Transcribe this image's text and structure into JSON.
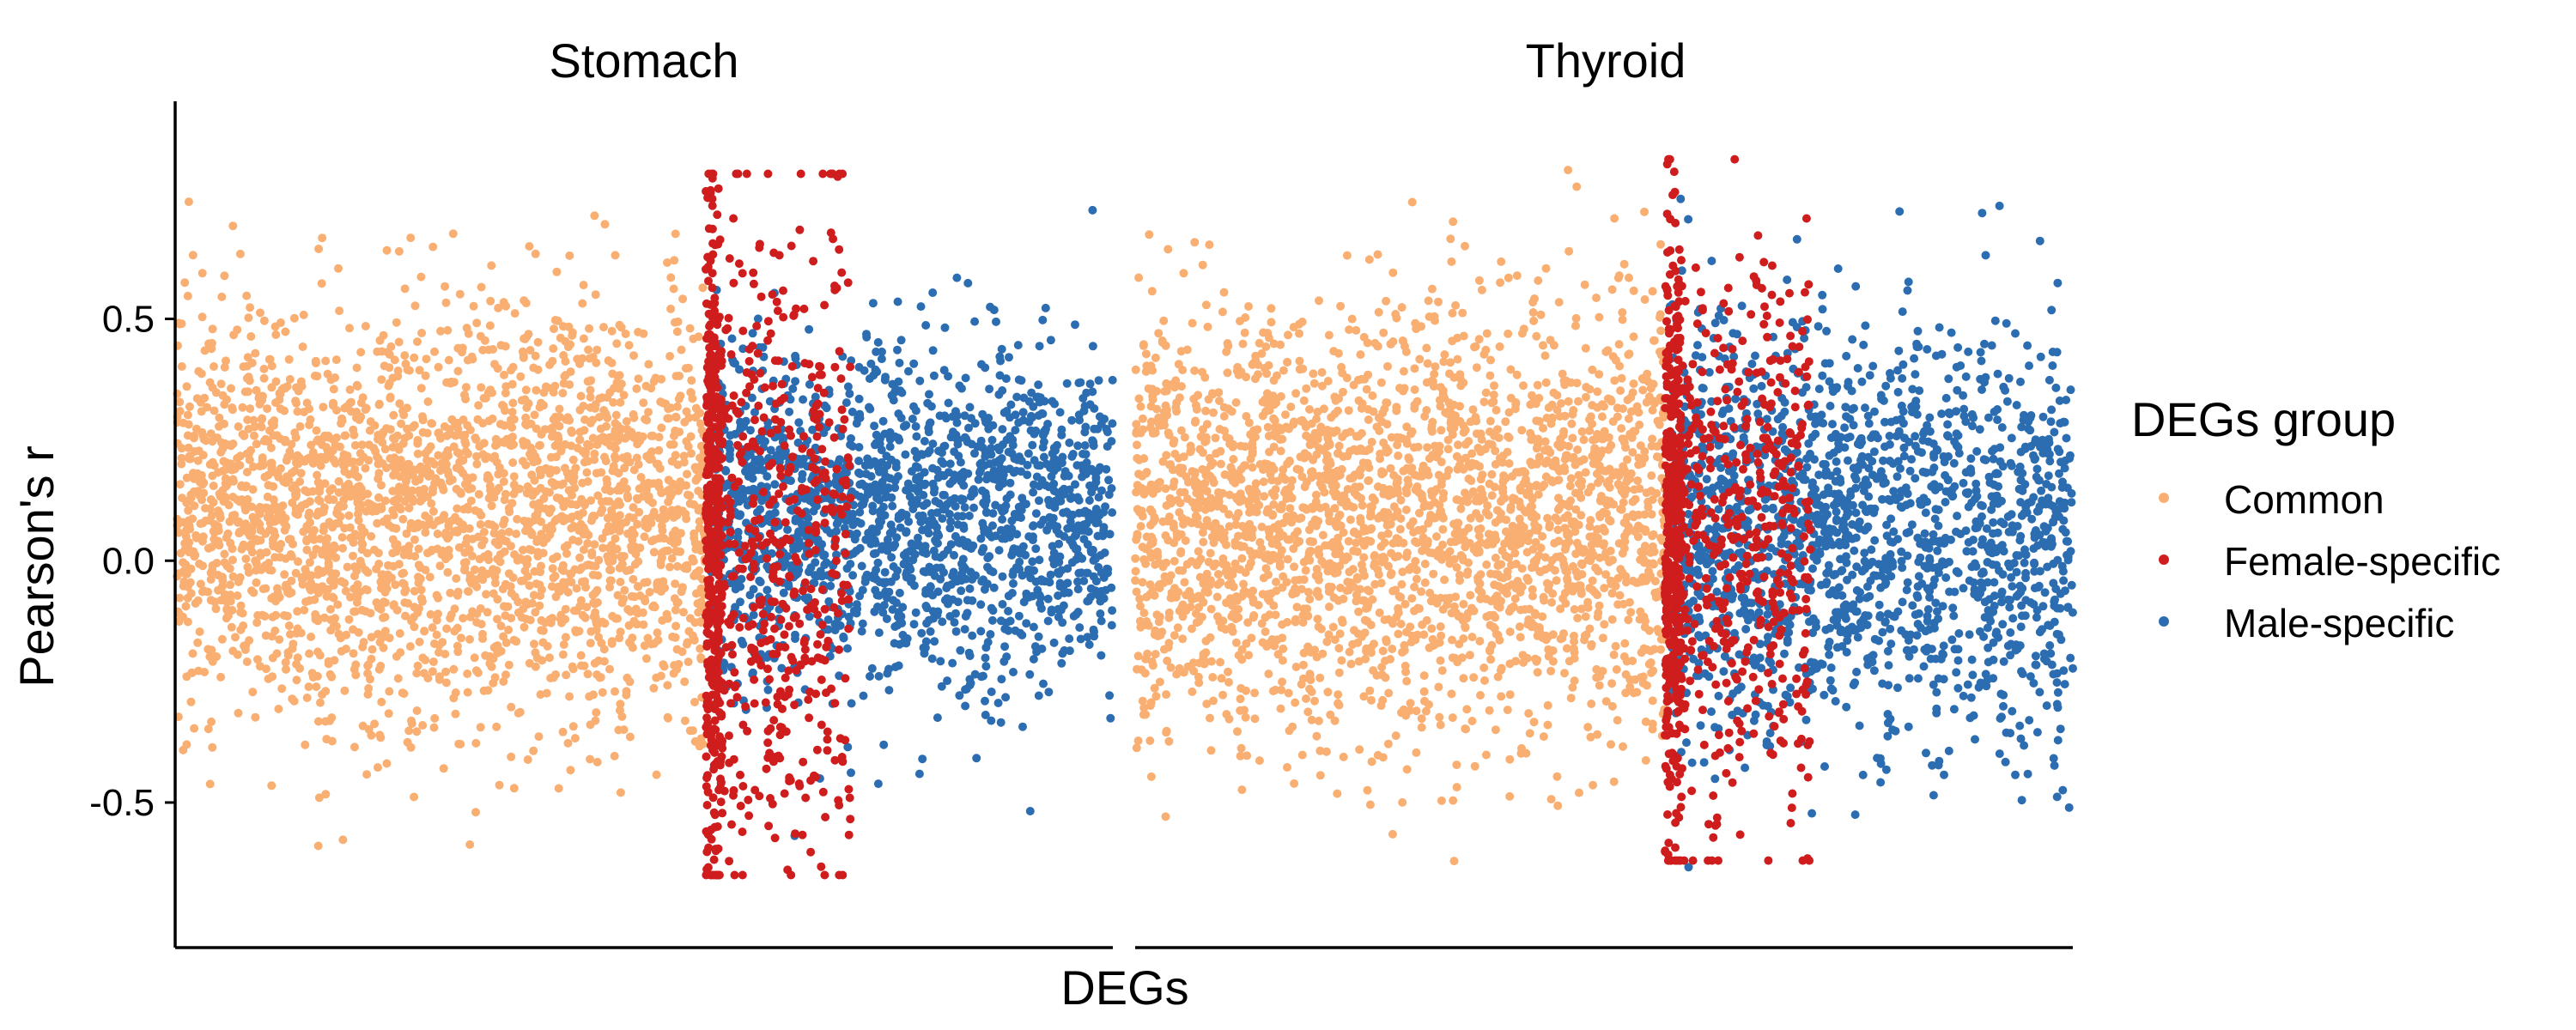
{
  "chart_data": {
    "type": "scatter",
    "title": "",
    "xlabel": "DEGs",
    "ylabel": "Pearson's r",
    "ylim": [
      -0.8,
      0.95
    ],
    "yticks": [
      {
        "value": 0.5,
        "label": "0.5"
      },
      {
        "value": 0.0,
        "label": "0.0"
      },
      {
        "value": -0.5,
        "label": "-0.5"
      }
    ],
    "grid": false,
    "legend": {
      "title": "DEGs group",
      "placement": "right",
      "entries": [
        {
          "name": "Common",
          "color": "#f9ae72"
        },
        {
          "name": "Female-specific",
          "color": "#cf1d1d"
        },
        {
          "name": "Male-specific",
          "color": "#2b6db0"
        }
      ]
    },
    "facets": [
      {
        "name": "Stomach",
        "groups": [
          {
            "group": "Common",
            "x_range": [
              0,
              0.565
            ],
            "y_center": 0.1,
            "y_sd": 0.21,
            "y_min": -0.66,
            "y_max": 0.88
          },
          {
            "group": "Female-specific",
            "x_range": [
              0.565,
              0.72
            ],
            "y_center": 0.05,
            "y_sd": 0.33,
            "y_min": -0.65,
            "y_max": 0.8
          },
          {
            "group": "Male-specific",
            "x_range": [
              0.57,
              1.0
            ],
            "y_center": 0.09,
            "y_sd": 0.17,
            "y_min": -0.57,
            "y_max": 0.76
          }
        ]
      },
      {
        "name": "Thyroid",
        "groups": [
          {
            "group": "Common",
            "x_range": [
              0,
              0.565
            ],
            "y_center": 0.08,
            "y_sd": 0.22,
            "y_min": -0.72,
            "y_max": 0.88
          },
          {
            "group": "Female-specific",
            "x_range": [
              0.565,
              0.72
            ],
            "y_center": 0.05,
            "y_sd": 0.3,
            "y_min": -0.62,
            "y_max": 0.83
          },
          {
            "group": "Male-specific",
            "x_range": [
              0.57,
              1.0
            ],
            "y_center": 0.05,
            "y_sd": 0.21,
            "y_min": -0.72,
            "y_max": 0.8
          }
        ]
      }
    ]
  }
}
